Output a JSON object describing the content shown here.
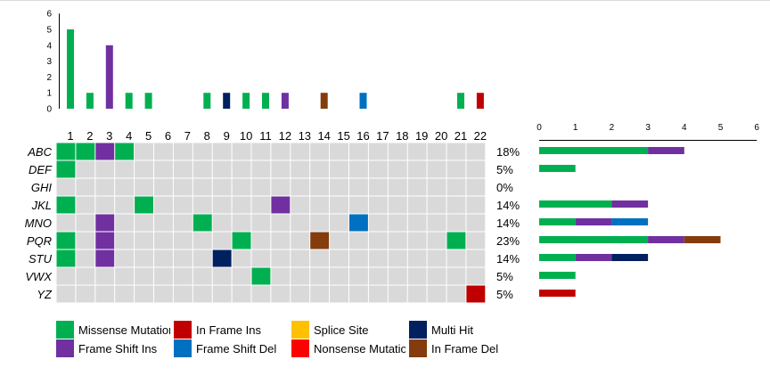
{
  "chart_data": [
    {
      "type": "bar",
      "y_ticks": [
        "0",
        "1",
        "2",
        "3",
        "4",
        "5",
        "6"
      ],
      "ylim": [
        0,
        6
      ],
      "x_labels": [
        "1",
        "2",
        "3",
        "4",
        "5",
        "6",
        "7",
        "8",
        "9",
        "10",
        "11",
        "12",
        "13",
        "14",
        "15",
        "16",
        "17",
        "18",
        "19",
        "20",
        "21",
        "22"
      ],
      "bars": [
        {
          "x": 1,
          "value": 5,
          "category": "Missense Mutation"
        },
        {
          "x": 2,
          "value": 1,
          "category": "Missense Mutation"
        },
        {
          "x": 3,
          "value": 4,
          "category": "Frame Shift Ins"
        },
        {
          "x": 4,
          "value": 1,
          "category": "Missense Mutation"
        },
        {
          "x": 5,
          "value": 1,
          "category": "Missense Mutation"
        },
        {
          "x": 8,
          "value": 1,
          "category": "Missense Mutation"
        },
        {
          "x": 9,
          "value": 1,
          "category": "Multi Hit"
        },
        {
          "x": 10,
          "value": 1,
          "category": "Missense Mutation"
        },
        {
          "x": 11,
          "value": 1,
          "category": "Missense Mutation"
        },
        {
          "x": 12,
          "value": 1,
          "category": "Frame Shift Ins"
        },
        {
          "x": 14,
          "value": 1,
          "category": "In Frame Del"
        },
        {
          "x": 16,
          "value": 1,
          "category": "Frame Shift Del"
        },
        {
          "x": 21,
          "value": 1,
          "category": "Missense Mutation"
        },
        {
          "x": 22,
          "value": 1,
          "category": "In Frame Ins"
        }
      ]
    },
    {
      "type": "heatmap",
      "columns": [
        "1",
        "2",
        "3",
        "4",
        "5",
        "6",
        "7",
        "8",
        "9",
        "10",
        "11",
        "12",
        "13",
        "14",
        "15",
        "16",
        "17",
        "18",
        "19",
        "20",
        "21",
        "22"
      ],
      "rows": [
        {
          "gene": "ABC",
          "percent": "18%",
          "cells": [
            {
              "col": 1,
              "category": "Missense Mutation"
            },
            {
              "col": 2,
              "category": "Missense Mutation"
            },
            {
              "col": 3,
              "category": "Frame Shift Ins"
            },
            {
              "col": 4,
              "category": "Missense Mutation"
            }
          ]
        },
        {
          "gene": "DEF",
          "percent": "5%",
          "cells": [
            {
              "col": 1,
              "category": "Missense Mutation"
            }
          ]
        },
        {
          "gene": "GHI",
          "percent": "0%",
          "cells": []
        },
        {
          "gene": "JKL",
          "percent": "14%",
          "cells": [
            {
              "col": 1,
              "category": "Missense Mutation"
            },
            {
              "col": 5,
              "category": "Missense Mutation"
            },
            {
              "col": 12,
              "category": "Frame Shift Ins"
            }
          ]
        },
        {
          "gene": "MNO",
          "percent": "14%",
          "cells": [
            {
              "col": 3,
              "category": "Frame Shift Ins"
            },
            {
              "col": 8,
              "category": "Missense Mutation"
            },
            {
              "col": 16,
              "category": "Frame Shift Del"
            }
          ]
        },
        {
          "gene": "PQR",
          "percent": "23%",
          "cells": [
            {
              "col": 1,
              "category": "Missense Mutation"
            },
            {
              "col": 3,
              "category": "Frame Shift Ins"
            },
            {
              "col": 10,
              "category": "Missense Mutation"
            },
            {
              "col": 14,
              "category": "In Frame Del"
            },
            {
              "col": 21,
              "category": "Missense Mutation"
            }
          ]
        },
        {
          "gene": "STU",
          "percent": "14%",
          "cells": [
            {
              "col": 1,
              "category": "Missense Mutation"
            },
            {
              "col": 3,
              "category": "Frame Shift Ins"
            },
            {
              "col": 9,
              "category": "Multi Hit"
            }
          ]
        },
        {
          "gene": "VWX",
          "percent": "5%",
          "cells": [
            {
              "col": 11,
              "category": "Missense Mutation"
            }
          ]
        },
        {
          "gene": "YZ",
          "percent": "5%",
          "cells": [
            {
              "col": 22,
              "category": "In Frame Ins"
            }
          ]
        }
      ]
    },
    {
      "type": "bar",
      "orientation": "horizontal",
      "stacked": true,
      "x_ticks": [
        "0",
        "1",
        "2",
        "3",
        "4",
        "5",
        "6"
      ],
      "xlim": [
        0,
        6
      ],
      "rows": [
        {
          "gene": "ABC",
          "segments": [
            {
              "category": "Missense Mutation",
              "value": 3
            },
            {
              "category": "Frame Shift Ins",
              "value": 1
            }
          ]
        },
        {
          "gene": "DEF",
          "segments": [
            {
              "category": "Missense Mutation",
              "value": 1
            }
          ]
        },
        {
          "gene": "GHI",
          "segments": []
        },
        {
          "gene": "JKL",
          "segments": [
            {
              "category": "Missense Mutation",
              "value": 2
            },
            {
              "category": "Frame Shift Ins",
              "value": 1
            }
          ]
        },
        {
          "gene": "MNO",
          "segments": [
            {
              "category": "Missense Mutation",
              "value": 1
            },
            {
              "category": "Frame Shift Ins",
              "value": 1
            },
            {
              "category": "Frame Shift Del",
              "value": 1
            }
          ]
        },
        {
          "gene": "PQR",
          "segments": [
            {
              "category": "Missense Mutation",
              "value": 3
            },
            {
              "category": "Frame Shift Ins",
              "value": 1
            },
            {
              "category": "In Frame Del",
              "value": 1
            }
          ]
        },
        {
          "gene": "STU",
          "segments": [
            {
              "category": "Missense Mutation",
              "value": 1
            },
            {
              "category": "Frame Shift Ins",
              "value": 1
            },
            {
              "category": "Multi Hit",
              "value": 1
            }
          ]
        },
        {
          "gene": "VWX",
          "segments": [
            {
              "category": "Missense Mutation",
              "value": 1
            }
          ]
        },
        {
          "gene": "YZ",
          "segments": [
            {
              "category": "In Frame Ins",
              "value": 1
            }
          ]
        }
      ]
    }
  ],
  "legend": [
    {
      "key": "Missense Mutation",
      "label": "Missense Mutation",
      "color": "#00b050"
    },
    {
      "key": "In Frame Ins",
      "label": "In Frame Ins",
      "color": "#c00000"
    },
    {
      "key": "Splice Site",
      "label": "Splice Site",
      "color": "#ffc000"
    },
    {
      "key": "Multi Hit",
      "label": "Multi Hit",
      "color": "#002060"
    },
    {
      "key": "Frame Shift Ins",
      "label": "Frame Shift Ins",
      "color": "#7030a0"
    },
    {
      "key": "Frame Shift Del",
      "label": "Frame Shift Del",
      "color": "#0070c0"
    },
    {
      "key": "Nonsense Mutation",
      "label": "Nonsense Mutation",
      "color": "#ff0000"
    },
    {
      "key": "In Frame Del",
      "label": "In Frame Del",
      "color": "#843c0c"
    }
  ],
  "colors": {
    "empty_cell": "#d9d9d9",
    "grid_line": "#ffffff",
    "axis": "#000000",
    "background": "#ffffff"
  }
}
